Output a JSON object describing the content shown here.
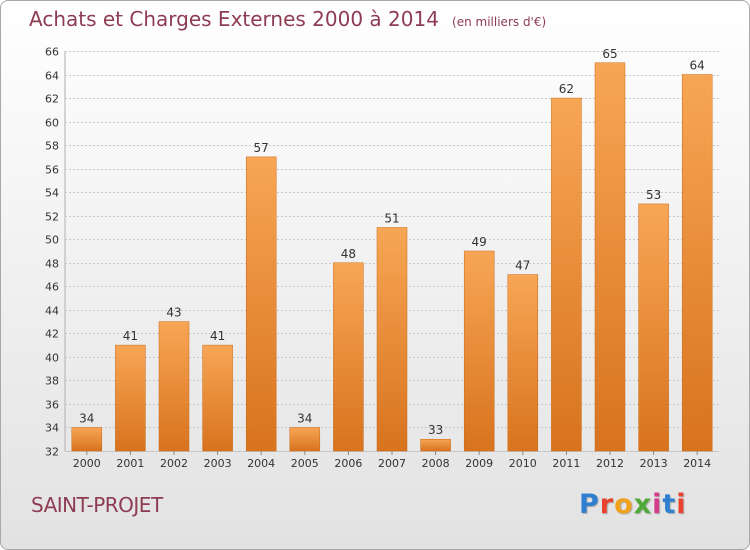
{
  "chart_data": {
    "type": "bar",
    "title": "Achats et Charges Externes 2000 à 2014",
    "subtitle": "(en milliers d'€)",
    "categories": [
      "2000",
      "2001",
      "2002",
      "2003",
      "2004",
      "2005",
      "2006",
      "2007",
      "2008",
      "2009",
      "2010",
      "2011",
      "2012",
      "2013",
      "2014"
    ],
    "values": [
      34,
      41,
      43,
      41,
      57,
      34,
      48,
      51,
      33,
      49,
      47,
      62,
      65,
      53,
      64
    ],
    "ylim": [
      32,
      66
    ],
    "ytick_step": 2,
    "grid": true,
    "legend": "none",
    "colors": {
      "bar": "#f29a43",
      "bar_dark": "#d8731e",
      "grid": "#c8c8c8",
      "title": "#8e3c53"
    }
  },
  "commune": "SAINT-PROJET",
  "brand": {
    "text": "Proxiti",
    "letter_colors": [
      "#2f7fd0",
      "#e8412d",
      "#f0a21d",
      "#4faa3a",
      "#d23a8a",
      "#2f7fd0",
      "#e8412d"
    ]
  }
}
